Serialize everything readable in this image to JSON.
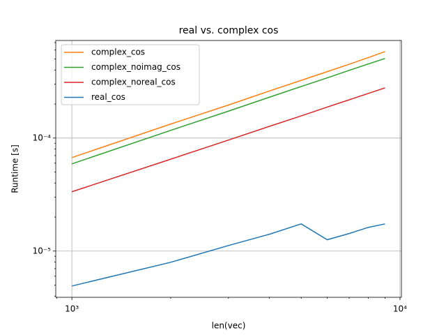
{
  "chart_data": {
    "type": "line",
    "title": "real vs. complex cos",
    "x_label": "len(vec)",
    "y_label": "Runtime [s]",
    "x": [
      1000,
      2000,
      3000,
      4000,
      5000,
      6000,
      7000,
      8000,
      9000
    ],
    "series": [
      {
        "name": "complex_cos",
        "color": "#ff7f0e",
        "values": [
          6.72e-05,
          0.000133,
          0.000196,
          0.000261,
          0.000324,
          0.000387,
          0.00045,
          0.000515,
          0.000582
        ]
      },
      {
        "name": "complex_noimag_cos",
        "color": "#2ca02c",
        "values": [
          5.91e-05,
          0.000117,
          0.000173,
          0.00023,
          0.000286,
          0.000341,
          0.000397,
          0.000452,
          0.000506
        ]
      },
      {
        "name": "complex_noreal_cos",
        "color": "#d62728",
        "values": [
          3.35e-05,
          6.5e-05,
          9.6e-05,
          0.000127,
          0.000157,
          0.000188,
          0.000218,
          0.000248,
          0.000278
        ]
      },
      {
        "name": "real_cos",
        "color": "#1f77b4",
        "values": [
          4.91e-06,
          7.96e-06,
          1.12e-05,
          1.41e-05,
          1.74e-05,
          1.26e-05,
          1.43e-05,
          1.62e-05,
          1.74e-05
        ]
      }
    ],
    "xlog": true,
    "ylog": true,
    "xlim": [
      893,
      10100
    ],
    "ylim": [
      3.9e-06,
      0.00073
    ],
    "xticks": [
      {
        "value": 1000,
        "label": "10³"
      },
      {
        "value": 10000,
        "label": "10⁴"
      }
    ],
    "yticks": [
      {
        "value": 1e-05,
        "label": "10⁻⁵"
      },
      {
        "value": 0.0001,
        "label": "10⁻⁴"
      }
    ],
    "xminor_ticks": [
      900,
      2000,
      3000,
      4000,
      5000,
      6000,
      7000,
      8000,
      9000
    ],
    "yminor_ticks": [
      4e-06,
      5e-06,
      6e-06,
      7e-06,
      8e-06,
      9e-06,
      2e-05,
      3e-05,
      4e-05,
      5e-05,
      6e-05,
      7e-05,
      8e-05,
      9e-05,
      0.0002,
      0.0003,
      0.0004,
      0.0005,
      0.0006,
      0.0007
    ],
    "grid": true,
    "legend_position": "upper-left"
  }
}
